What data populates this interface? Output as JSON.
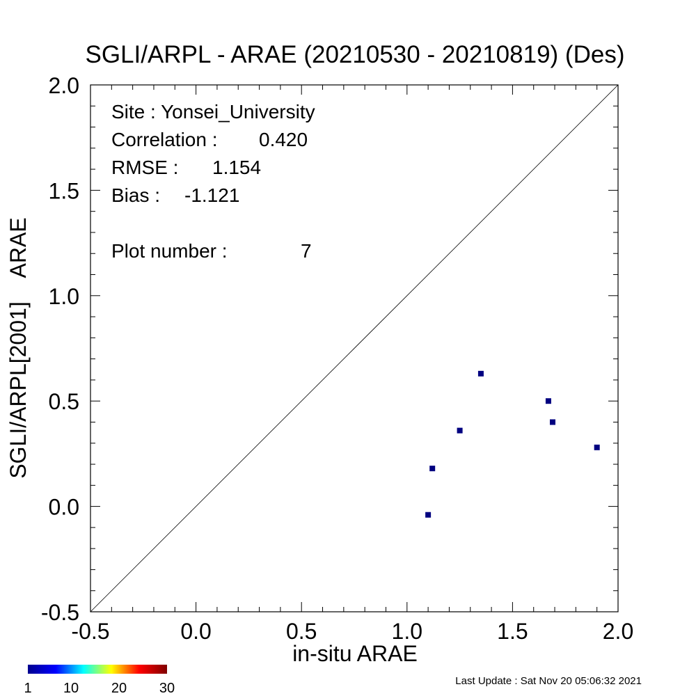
{
  "chart_data": {
    "type": "scatter",
    "title": "SGLI/ARPL - ARAE (20210530 - 20210819) (Des)",
    "xlabel": "in-situ ARAE",
    "ylabel": "SGLI/ARPL[2001]    ARAE",
    "xlim": [
      -0.5,
      2.0
    ],
    "ylim": [
      -0.5,
      2.0
    ],
    "xticks": [
      "-0.5",
      "0.0",
      "0.5",
      "1.0",
      "1.5",
      "2.0"
    ],
    "yticks": [
      "-0.5",
      "0.0",
      "0.5",
      "1.0",
      "1.5",
      "2.0"
    ],
    "grid": false,
    "reference_line": "1:1",
    "point_color": "#000080",
    "points": [
      {
        "x": 1.1,
        "y": -0.04
      },
      {
        "x": 1.12,
        "y": 0.18
      },
      {
        "x": 1.25,
        "y": 0.36
      },
      {
        "x": 1.35,
        "y": 0.63
      },
      {
        "x": 1.67,
        "y": 0.5
      },
      {
        "x": 1.69,
        "y": 0.4
      },
      {
        "x": 1.9,
        "y": 0.28
      }
    ],
    "stats": [
      {
        "label": "Site : Yonsei_University",
        "value": ""
      },
      {
        "label": "Correlation :",
        "value": "0.420"
      },
      {
        "label": "RMSE :",
        "value": "1.154"
      },
      {
        "label": "Bias :",
        "value": "-1.121"
      },
      {
        "label": "Plot number :",
        "value": "7"
      }
    ],
    "colorbar": {
      "ticks": [
        "1",
        "10",
        "20",
        "30"
      ],
      "colors": [
        "#00008f",
        "#0000ff",
        "#00ffff",
        "#ffff00",
        "#ff0000",
        "#800000"
      ]
    }
  },
  "footer": {
    "last_update": "Last Update : Sat Nov 20 05:06:32 2021"
  }
}
